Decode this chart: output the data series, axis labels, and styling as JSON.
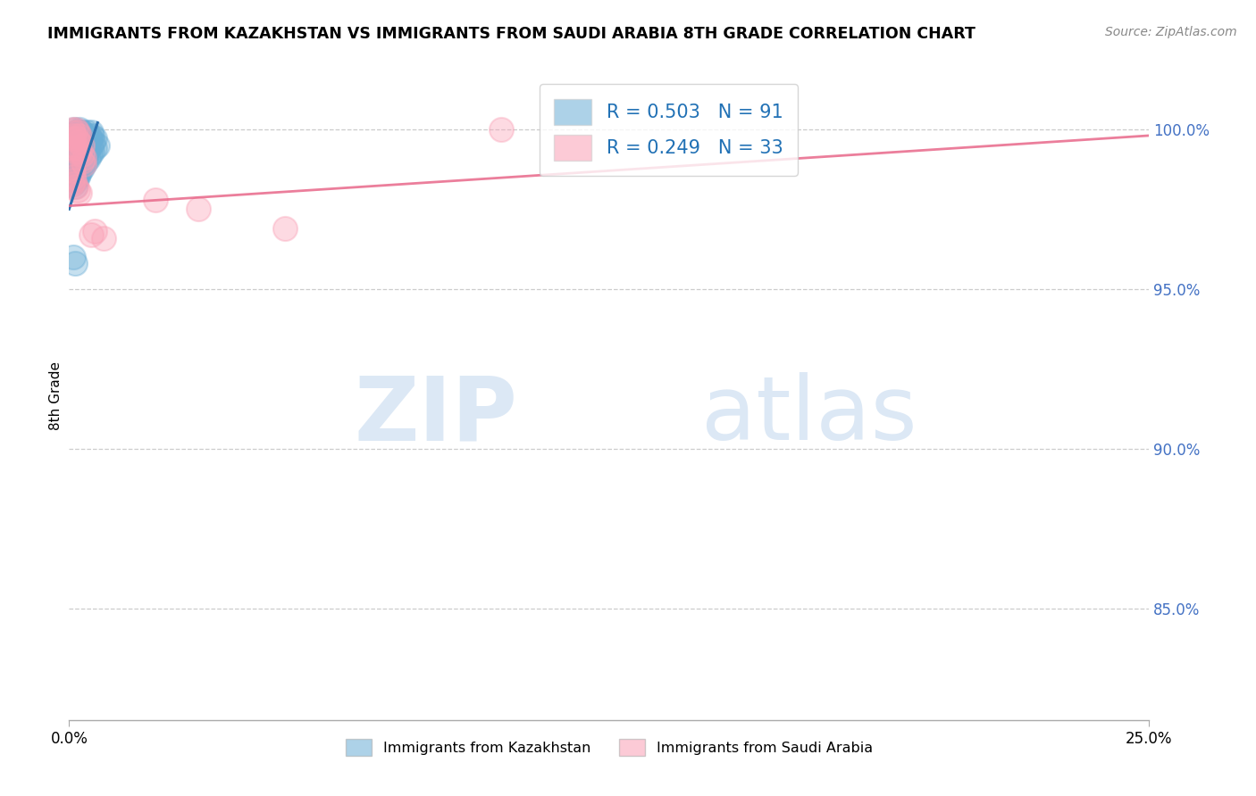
{
  "title": "IMMIGRANTS FROM KAZAKHSTAN VS IMMIGRANTS FROM SAUDI ARABIA 8TH GRADE CORRELATION CHART",
  "source": "Source: ZipAtlas.com",
  "ylabel": "8th Grade",
  "y_ticks": [
    0.85,
    0.9,
    0.95,
    1.0
  ],
  "y_tick_labels": [
    "85.0%",
    "90.0%",
    "95.0%",
    "100.0%"
  ],
  "x_range": [
    0.0,
    0.25
  ],
  "y_range": [
    0.815,
    1.018
  ],
  "legend_r1": "R = 0.503",
  "legend_n1": "N = 91",
  "legend_r2": "R = 0.249",
  "legend_n2": "N = 33",
  "color_kaz": "#6baed6",
  "color_sau": "#fa9fb5",
  "color_kaz_line": "#2c6fad",
  "color_sau_line": "#e8688a",
  "watermark_color": "#dce8f5",
  "label_kaz": "Immigrants from Kazakhstan",
  "label_sau": "Immigrants from Saudi Arabia",
  "kaz_x": [
    0.0008,
    0.0012,
    0.0015,
    0.002,
    0.0008,
    0.001,
    0.0018,
    0.0022,
    0.0025,
    0.003,
    0.0005,
    0.0007,
    0.001,
    0.0013,
    0.0016,
    0.002,
    0.0023,
    0.0005,
    0.0008,
    0.0011,
    0.0014,
    0.0017,
    0.0021,
    0.0024,
    0.0028,
    0.0032,
    0.0006,
    0.0009,
    0.0012,
    0.0015,
    0.0019,
    0.0022,
    0.0026,
    0.003,
    0.0035,
    0.004,
    0.0007,
    0.001,
    0.0013,
    0.0017,
    0.002,
    0.0024,
    0.0027,
    0.0031,
    0.0036,
    0.0041,
    0.0046,
    0.005,
    0.0007,
    0.0009,
    0.0012,
    0.0015,
    0.0018,
    0.0022,
    0.0025,
    0.0028,
    0.0033,
    0.0038,
    0.0043,
    0.0048,
    0.0053,
    0.0008,
    0.0011,
    0.0014,
    0.0017,
    0.002,
    0.0024,
    0.0027,
    0.0031,
    0.0036,
    0.004,
    0.0045,
    0.005,
    0.0055,
    0.006,
    0.001,
    0.0013,
    0.0016,
    0.0019,
    0.0023,
    0.0026,
    0.003,
    0.0034,
    0.0039,
    0.0044,
    0.0049,
    0.0054,
    0.006,
    0.0066,
    0.001,
    0.0013
  ],
  "kaz_y": [
    0.998,
    1.0,
    0.999,
    0.998,
    0.997,
    0.996,
    0.998,
    0.999,
    1.0,
    0.999,
    0.995,
    0.994,
    0.996,
    0.997,
    0.998,
    0.999,
    0.998,
    0.993,
    0.992,
    0.994,
    0.995,
    0.996,
    0.997,
    0.998,
    0.999,
    0.998,
    0.991,
    0.99,
    0.992,
    0.993,
    0.994,
    0.995,
    0.996,
    0.997,
    0.998,
    0.999,
    0.989,
    0.988,
    0.99,
    0.991,
    0.992,
    0.993,
    0.994,
    0.995,
    0.996,
    0.997,
    0.998,
    0.999,
    0.987,
    0.986,
    0.988,
    0.989,
    0.99,
    0.991,
    0.992,
    0.993,
    0.994,
    0.995,
    0.996,
    0.997,
    0.998,
    0.985,
    0.984,
    0.986,
    0.987,
    0.988,
    0.989,
    0.99,
    0.991,
    0.992,
    0.993,
    0.994,
    0.995,
    0.996,
    0.997,
    0.983,
    0.982,
    0.984,
    0.985,
    0.986,
    0.987,
    0.988,
    0.989,
    0.99,
    0.991,
    0.992,
    0.993,
    0.994,
    0.995,
    0.96,
    0.958
  ],
  "sau_x": [
    0.0008,
    0.001,
    0.0015,
    0.002,
    0.0025,
    0.0008,
    0.0012,
    0.0018,
    0.0022,
    0.003,
    0.0008,
    0.0015,
    0.002,
    0.0025,
    0.003,
    0.0035,
    0.003,
    0.0035,
    0.0008,
    0.001,
    0.005,
    0.006,
    0.008,
    0.001,
    0.0012,
    0.1,
    0.02,
    0.03,
    0.05,
    0.0008,
    0.0015,
    0.002,
    0.0025
  ],
  "sau_y": [
    1.0,
    0.999,
    1.0,
    0.999,
    0.998,
    0.997,
    0.998,
    0.997,
    0.996,
    0.995,
    0.994,
    0.993,
    0.994,
    0.993,
    0.992,
    0.991,
    0.99,
    0.989,
    0.988,
    0.987,
    0.967,
    0.968,
    0.966,
    0.985,
    0.984,
    1.0,
    0.978,
    0.975,
    0.969,
    0.983,
    0.982,
    0.981,
    0.98
  ],
  "kaz_line_x": [
    0.0,
    0.0066
  ],
  "kaz_line_y": [
    0.975,
    1.002
  ],
  "sau_line_x": [
    0.0,
    0.25
  ],
  "sau_line_y": [
    0.976,
    0.998
  ]
}
